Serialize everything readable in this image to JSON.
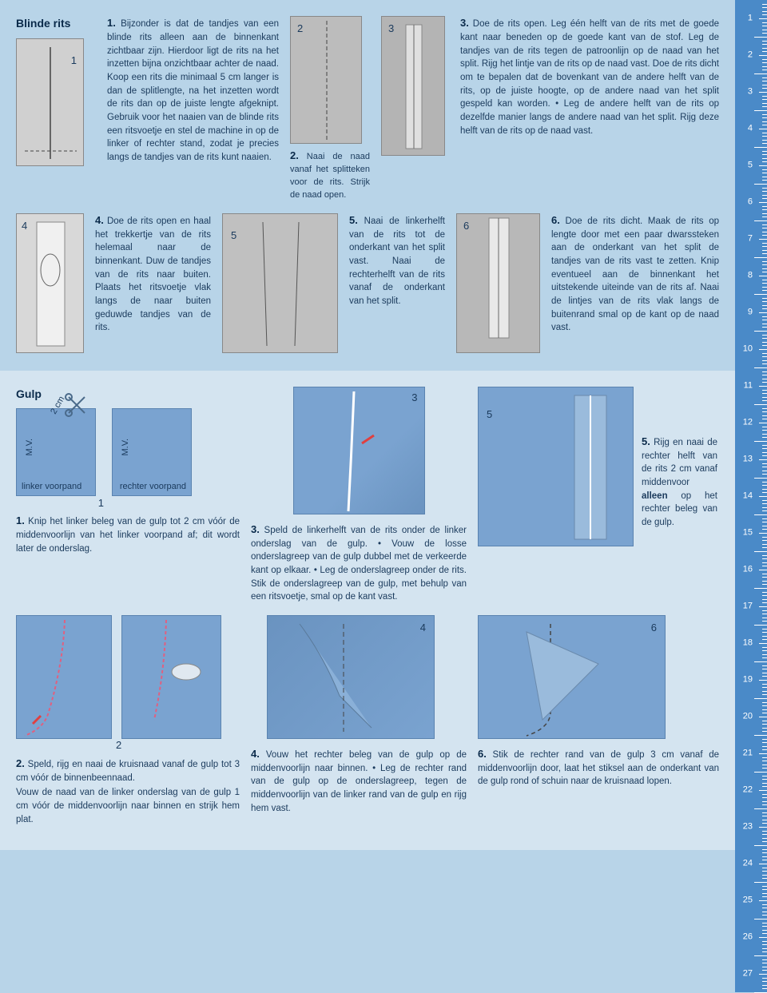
{
  "colors": {
    "page_bg_top": "#b8d4e8",
    "page_bg_bottom": "#d4e4f0",
    "ruler_bg": "#4a8ac8",
    "text": "#1a3a5c",
    "illus_grey": "#c8c8c8",
    "illus_blue": "#7aa3d0"
  },
  "ruler": {
    "start": 1,
    "end": 27
  },
  "blinde": {
    "heading": "Blinde rits",
    "step1": {
      "num": "1.",
      "text": " Bijzonder is dat de tandjes van een blinde rits alleen aan de binnenkant zichtbaar zijn. Hierdoor ligt de rits na het inzetten bijna onzichtbaar achter de naad. Koop een rits die minimaal 5 cm langer is dan de splitlengte, na het inzetten wordt de rits dan op de juiste lengte afgeknipt. Gebruik voor het naaien van de blinde rits een ritsvoetje en stel de machine in op de linker of rechter stand, zodat je precies langs de tandjes van de rits kunt naaien.",
      "label": "1"
    },
    "step2": {
      "num": "2.",
      "text": " Naai de naad vanaf het splitteken voor de rits. Strijk de naad open.",
      "label": "2"
    },
    "step3": {
      "num": "3.",
      "text": " Doe de rits open. Leg één helft van de rits met de goede kant naar beneden op de goede kant van de stof. Leg de tandjes van de rits tegen de patroonlijn op de naad van het split. Rijg het lintje van de rits op de naad vast. Doe de rits dicht om te bepalen dat de bovenkant van de andere helft van de rits, op de juiste hoogte, op de andere naad van het split gespeld kan worden. • Leg de andere helft van de rits op dezelfde manier langs de andere naad van het split. Rijg deze helft van de rits op de naad vast.",
      "label": "3"
    },
    "step4": {
      "num": "4.",
      "text": " Doe de rits open en haal het trekkertje van de rits helemaal naar de binnenkant. Duw de tandjes van de rits naar buiten. Plaats het ritsvoetje vlak langs de naar buiten geduwde tandjes van de rits.",
      "label": "4"
    },
    "step5": {
      "num": "5.",
      "text": " Naai de linkerhelft van de rits tot de onderkant van het split vast. Naai de rechterhelft van de rits vanaf de onderkant van het split.",
      "label": "5"
    },
    "step6": {
      "num": "6.",
      "text": " Doe de rits dicht. Maak de rits op lengte door met een paar dwarssteken aan de onderkant van het split de tandjes van de rits vast te zetten. Knip eventueel aan de binnenkant het uitstekende uiteinde van de rits af. Naai de lintjes van de rits vlak langs de buitenrand smal op de kant op de naad vast.",
      "label": "6"
    }
  },
  "gulp": {
    "heading": "Gulp",
    "step1": {
      "num": "1.",
      "text": " Knip het linker beleg van de gulp tot 2 cm vóór de middenvoorlijn van het linker voorpand af; dit wordt later de onderslag.",
      "linker": "linker voorpand",
      "rechter": "rechter voorpand",
      "two_cm": "2 cm",
      "mv": "M.V.",
      "label": "1"
    },
    "step2": {
      "num": "2.",
      "text": " Speld, rijg en naai de kruisnaad vanaf de gulp tot 3 cm vóór de binnenbeennaad.",
      "text2": "Vouw de naad van de linker onderslag van de gulp 1 cm vóór de middenvoorlijn naar binnen en strijk hem plat.",
      "label": "2"
    },
    "step3": {
      "num": "3.",
      "text": " Speld de linkerhelft van de rits onder de linker onderslag van de gulp. • Vouw de losse onderslagreep van de gulp dubbel met de verkeerde kant op elkaar. • Leg de onderslagreep onder de rits. Stik de onderslagreep van de gulp, met behulp van een ritsvoetje, smal op de kant vast.",
      "label": "3"
    },
    "step4": {
      "num": "4.",
      "text": " Vouw het rechter beleg van de gulp op de middenvoorlijn naar binnen. • Leg de rechter rand van de gulp op de onderslagreep, tegen de middenvoorlijn van de linker rand van de gulp en rijg hem vast.",
      "label": "4"
    },
    "step5": {
      "num": "5.",
      "text": " Rijg en naai de rechter helft van de rits 2 cm vanaf middenvoor alleen op het rechter beleg van de gulp.",
      "bold": "alleen",
      "label": "5"
    },
    "step6": {
      "num": "6.",
      "text": " Stik de rechter rand van de gulp 3 cm vanaf de middenvoorlijn door, laat het stiksel aan de onderkant van de gulp rond of schuin naar de kruisnaad lopen.",
      "label": "6"
    }
  }
}
